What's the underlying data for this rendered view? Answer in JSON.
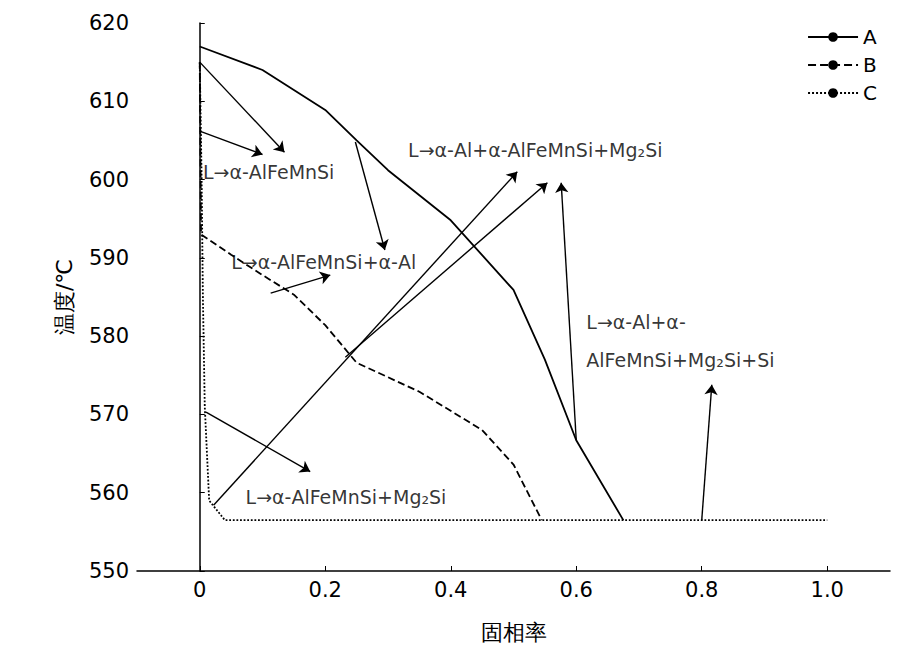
{
  "chart_data": {
    "type": "line",
    "xlabel": "固相率",
    "ylabel": "温度/℃",
    "xlim": [
      -0.1,
      1.1
    ],
    "ylim": [
      550,
      620
    ],
    "xticks": [
      0,
      0.2,
      0.4,
      0.6,
      0.8,
      {
        "value": 1,
        "label": "1.0"
      }
    ],
    "yticks": [
      550,
      560,
      570,
      580,
      590,
      600,
      610,
      620
    ],
    "grid": false,
    "legend": "top-right",
    "series": [
      {
        "name": "A",
        "color": "#000000",
        "line_style": "solid",
        "x": [
          0,
          0.1,
          0.2,
          0.25,
          0.3,
          0.4,
          0.5,
          0.55,
          0.6,
          0.675
        ],
        "values": [
          617,
          614,
          608.9,
          605,
          601.2,
          594.8,
          585.9,
          577,
          566.7,
          556.5
        ]
      },
      {
        "name": "B",
        "color": "#000000",
        "line_style": "dashed",
        "x": [
          0,
          0.002,
          0.05,
          0.1,
          0.15,
          0.2,
          0.25,
          0.35,
          0.45,
          0.5,
          0.545
        ],
        "values": [
          615,
          593,
          590.4,
          587.8,
          585.3,
          581.4,
          576.6,
          572.9,
          568,
          563.6,
          556.5
        ]
      },
      {
        "name": "C",
        "color": "#000000",
        "line_style": "dotted",
        "x": [
          0,
          0.003,
          0.005,
          0.008,
          0.015,
          0.04,
          1.0
        ],
        "values": [
          615,
          600,
          585,
          571,
          559,
          556.5,
          556.5
        ]
      }
    ],
    "annotations": [
      {
        "text": "L→α-AlFeMnSi",
        "x": 0.005,
        "y": 601,
        "arrows": [
          {
            "from": [
              0,
              606.2
            ],
            "to": [
              0.1,
              603.2
            ]
          },
          {
            "from": [
              0,
              615
            ],
            "to": [
              0.135,
              603.5
            ]
          }
        ]
      },
      {
        "text": "L→α-AlFeMnSi+α-Al",
        "x": 0.05,
        "y": 589.5,
        "arrows": [
          {
            "from": [
              0.248,
              604.8
            ],
            "to": [
              0.295,
              591
            ]
          },
          {
            "from": [
              0.113,
              585.5
            ],
            "to": [
              0.208,
              587.8
            ]
          }
        ]
      },
      {
        "text": "L→α-Al+α-AlFeMnSi+Mg₂Si",
        "x": 0.332,
        "y": 603.8,
        "arrows": [
          {
            "from": [
              0.022,
              558.4
            ],
            "to": [
              0.506,
              601
            ]
          },
          {
            "from": [
              0.232,
              577.3
            ],
            "to": [
              0.554,
              599.6
            ]
          },
          {
            "from": [
              0.6,
              566.7
            ],
            "to": [
              0.576,
              599.6
            ]
          }
        ]
      },
      {
        "text": "L→α-Al+α-\nAlFeMnSi+Mg₂Si+Si",
        "x": 0.616,
        "y": 579.4,
        "arrows": [
          {
            "from": [
              0.8,
              556.5
            ],
            "to": [
              0.816,
              573.8
            ]
          }
        ]
      },
      {
        "text": "L→α-AlFeMnSi+Mg₂Si",
        "x": 0.073,
        "y": 559.5,
        "arrows": [
          {
            "from": [
              0.01,
              570.3
            ],
            "to": [
              0.176,
              562.7
            ]
          }
        ]
      }
    ]
  }
}
